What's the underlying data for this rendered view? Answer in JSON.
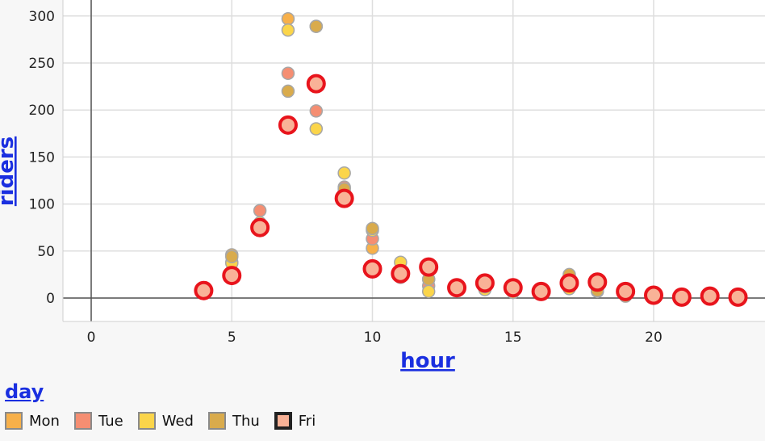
{
  "chart_data": {
    "type": "scatter",
    "xlabel": "hour",
    "ylabel": "riders",
    "xlim": [
      -1,
      24
    ],
    "ylim": [
      -25,
      305
    ],
    "x_ticks": [
      0,
      5,
      10,
      15,
      20
    ],
    "y_ticks": [
      0,
      50,
      100,
      150,
      200,
      250,
      300
    ],
    "grid": true,
    "legend": {
      "title": "day",
      "placement": "bottom-left",
      "highlighted": "Fri"
    },
    "series": [
      {
        "name": "Mon",
        "color": "#f7b04a",
        "points": [
          [
            5,
            46
          ],
          [
            7,
            297
          ],
          [
            8,
            289
          ],
          [
            9,
            113
          ],
          [
            10,
            53
          ],
          [
            11,
            22
          ],
          [
            12,
            20
          ],
          [
            13,
            10
          ],
          [
            14,
            11
          ],
          [
            15,
            6
          ],
          [
            16,
            6
          ],
          [
            17,
            22
          ],
          [
            18,
            9
          ],
          [
            19,
            5
          ],
          [
            20,
            3
          ],
          [
            21,
            1
          ],
          [
            22,
            2
          ],
          [
            23,
            1
          ]
        ]
      },
      {
        "name": "Tue",
        "color": "#f58e72",
        "points": [
          [
            5,
            38
          ],
          [
            6,
            93
          ],
          [
            7,
            239
          ],
          [
            8,
            199
          ],
          [
            9,
            118
          ],
          [
            10,
            63
          ],
          [
            11,
            27
          ],
          [
            12,
            13
          ],
          [
            13,
            12
          ],
          [
            14,
            10
          ],
          [
            15,
            9
          ],
          [
            16,
            7
          ],
          [
            17,
            13
          ],
          [
            18,
            7
          ],
          [
            19,
            4
          ],
          [
            20,
            2
          ],
          [
            21,
            2
          ],
          [
            22,
            1
          ],
          [
            23,
            1
          ]
        ]
      },
      {
        "name": "Wed",
        "color": "#fbd54a",
        "points": [
          [
            5,
            37
          ],
          [
            6,
            80
          ],
          [
            7,
            285
          ],
          [
            8,
            180
          ],
          [
            9,
            133
          ],
          [
            10,
            72
          ],
          [
            11,
            38
          ],
          [
            12,
            7
          ],
          [
            13,
            13
          ],
          [
            14,
            9
          ],
          [
            15,
            7
          ],
          [
            16,
            8
          ],
          [
            17,
            10
          ],
          [
            18,
            11
          ],
          [
            19,
            5
          ],
          [
            20,
            3
          ],
          [
            21,
            1
          ],
          [
            22,
            2
          ],
          [
            23,
            1
          ]
        ]
      },
      {
        "name": "Thu",
        "color": "#d9ab4c",
        "points": [
          [
            5,
            44
          ],
          [
            6,
            78
          ],
          [
            7,
            220
          ],
          [
            8,
            289
          ],
          [
            9,
            116
          ],
          [
            10,
            74
          ],
          [
            11,
            25
          ],
          [
            12,
            20
          ],
          [
            13,
            11
          ],
          [
            14,
            12
          ],
          [
            15,
            6
          ],
          [
            16,
            7
          ],
          [
            17,
            25
          ],
          [
            18,
            8
          ],
          [
            19,
            2
          ],
          [
            20,
            2
          ],
          [
            21,
            1
          ],
          [
            22,
            1
          ],
          [
            23,
            1
          ]
        ]
      },
      {
        "name": "Fri",
        "color": "#f9b297",
        "points": [
          [
            4,
            8
          ],
          [
            5,
            24
          ],
          [
            6,
            75
          ],
          [
            7,
            184
          ],
          [
            8,
            228
          ],
          [
            9,
            106
          ],
          [
            10,
            31
          ],
          [
            11,
            26
          ],
          [
            12,
            33
          ],
          [
            13,
            11
          ],
          [
            14,
            16
          ],
          [
            15,
            11
          ],
          [
            16,
            7
          ],
          [
            17,
            16
          ],
          [
            18,
            17
          ],
          [
            19,
            7
          ],
          [
            20,
            3
          ],
          [
            21,
            1
          ],
          [
            22,
            2
          ],
          [
            23,
            1
          ]
        ]
      }
    ]
  }
}
